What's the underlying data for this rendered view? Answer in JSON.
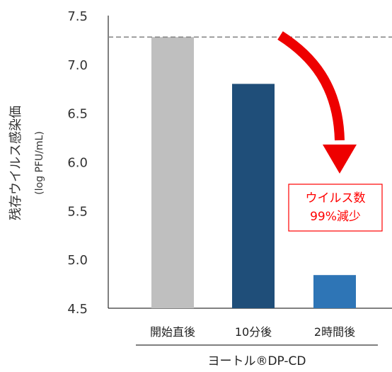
{
  "chart_data": {
    "type": "bar",
    "categories": [
      "開始直後",
      "10分後",
      "2時間後"
    ],
    "values": [
      7.28,
      6.8,
      4.84
    ],
    "colors": [
      "#bfbfbf",
      "#1f4e79",
      "#2e75b6"
    ],
    "ylim": [
      4.5,
      7.5
    ],
    "yticks": [
      "4.5",
      "5.0",
      "5.5",
      "6.0",
      "6.5",
      "7.0",
      "7.5"
    ],
    "ylabel": "残存ウイルス感染価",
    "ylabel_unit": "(log PFU/mL)",
    "xlabel": "ヨートル®DP-CD",
    "reference_line_value": 7.28,
    "annotation": {
      "line1": "ウイルス数",
      "line2": "99%減少",
      "color": "#ff0000"
    },
    "grid": false
  }
}
